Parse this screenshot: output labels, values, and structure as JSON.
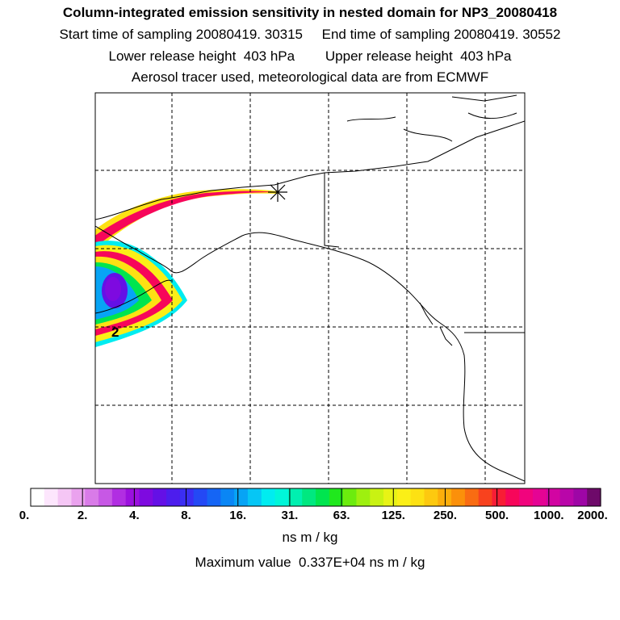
{
  "header": {
    "title": "Column-integrated emission sensitivity in nested domain for NP3_20080418",
    "start_label": "Start time of sampling 20080419. 30315",
    "end_label": "End time of sampling 20080419. 30552",
    "lower_label": "Lower release height  403 hPa",
    "upper_label": "Upper release height  403 hPa",
    "info": "Aerosol tracer used, meteorological data are from ECMWF"
  },
  "map": {
    "contour_label": "2",
    "release_marker": "release-point-star"
  },
  "colorbar": {
    "tick_labels": [
      "0.",
      "2.",
      "4.",
      "8.",
      "16.",
      "31.",
      "63.",
      "125.",
      "250.",
      "500.",
      "1000.",
      "2000."
    ],
    "colors": [
      "#ffffff",
      "#fde6fd",
      "#f5c6f5",
      "#eaa2ee",
      "#d97be8",
      "#c758e5",
      "#b12ee2",
      "#9b10de",
      "#7e0ae0",
      "#6410e6",
      "#4d1ded",
      "#3b2ef3",
      "#2449f5",
      "#1565f5",
      "#0a86f5",
      "#07a4f5",
      "#06c6f5",
      "#00ecf0",
      "#00f6d9",
      "#00f0b0",
      "#00e880",
      "#00e54f",
      "#20e81d",
      "#6cec0e",
      "#9ef00f",
      "#c9f212",
      "#e8f315",
      "#fbef17",
      "#fde113",
      "#fdc90f",
      "#fcae0b",
      "#fb900a",
      "#f96c12",
      "#f8421e",
      "#f81d35",
      "#f7065a",
      "#f1047d",
      "#e50494",
      "#d205a2",
      "#b906a9",
      "#9e06a6",
      "#6e0a6a"
    ],
    "unit": "ns m / kg"
  },
  "footer": {
    "max_value": "Maximum value  0.337E+04 ns m / kg"
  }
}
